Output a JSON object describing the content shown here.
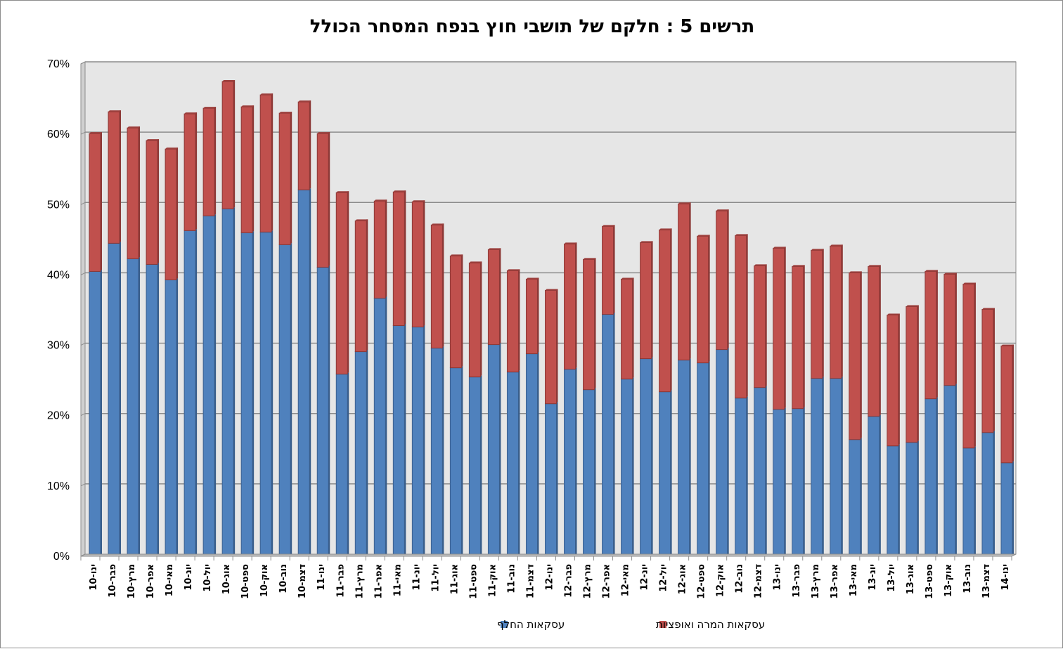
{
  "chart_data": {
    "type": "bar",
    "stacked": true,
    "title": "תרשים 5 : חלקם של תושבי חוץ בנפח המסחר הכולל",
    "xlabel": "",
    "ylabel": "",
    "ylim": [
      0,
      70
    ],
    "yticks": [
      "0%",
      "10%",
      "20%",
      "30%",
      "40%",
      "50%",
      "60%",
      "70%"
    ],
    "grid": true,
    "legend_position": "bottom",
    "categories": [
      "ינו-10",
      "פבר-10",
      "מרץ-10",
      "אפר-10",
      "מאי-10",
      "יונ-10",
      "יול-10",
      "אוג-10",
      "ספט-10",
      "אוק-10",
      "נוב-10",
      "דצמ-10",
      "ינו-11",
      "פבר-11",
      "מרץ-11",
      "אפר-11",
      "מאי-11",
      "יונ-11",
      "יול-11",
      "אוג-11",
      "ספט-11",
      "אוק-11",
      "נוב-11",
      "דצמ-11",
      "ינו-12",
      "פבר-12",
      "מרץ-12",
      "אפר-12",
      "מאי-12",
      "יונ-12",
      "יול-12",
      "אוג-12",
      "ספט-12",
      "אוק-12",
      "נוב-12",
      "דצמ-12",
      "ינו-13",
      "פבר-13",
      "מרץ-13",
      "אפר-13",
      "מאי-13",
      "יונ-13",
      "יול-13",
      "אוג-13",
      "ספט-13",
      "אוק-13",
      "נוב-13",
      "דצמ-13",
      "ינו-14"
    ],
    "series": [
      {
        "name": "עסקאות החלף",
        "color": "#4f81bd",
        "values": [
          40.2,
          44.2,
          42.0,
          41.2,
          39.0,
          46.0,
          48.1,
          49.1,
          45.7,
          45.8,
          44.0,
          51.8,
          40.8,
          25.6,
          28.8,
          36.4,
          32.5,
          32.3,
          29.3,
          26.5,
          25.2,
          29.8,
          25.9,
          28.5,
          21.4,
          26.3,
          23.4,
          34.1,
          24.9,
          27.8,
          23.1,
          27.6,
          27.2,
          29.1,
          22.2,
          23.7,
          20.6,
          20.7,
          25.0,
          25.0,
          16.3,
          19.6,
          15.4,
          15.9,
          22.1,
          24.0,
          15.1,
          17.3,
          13.0
        ]
      },
      {
        "name": "עסקאות המרה ואופציות",
        "color": "#c0504d",
        "values": [
          19.6,
          18.7,
          18.6,
          17.6,
          18.6,
          16.6,
          15.3,
          18.1,
          17.9,
          19.5,
          18.7,
          12.5,
          19.0,
          25.8,
          18.6,
          13.8,
          19.0,
          17.8,
          17.5,
          15.9,
          16.2,
          13.5,
          14.4,
          10.6,
          16.1,
          17.8,
          18.5,
          12.5,
          14.2,
          16.5,
          23.0,
          22.2,
          18.0,
          19.7,
          23.1,
          17.3,
          22.9,
          20.2,
          18.2,
          18.8,
          23.7,
          21.3,
          18.6,
          19.3,
          18.1,
          15.8,
          23.3,
          17.5,
          16.6
        ]
      }
    ]
  }
}
